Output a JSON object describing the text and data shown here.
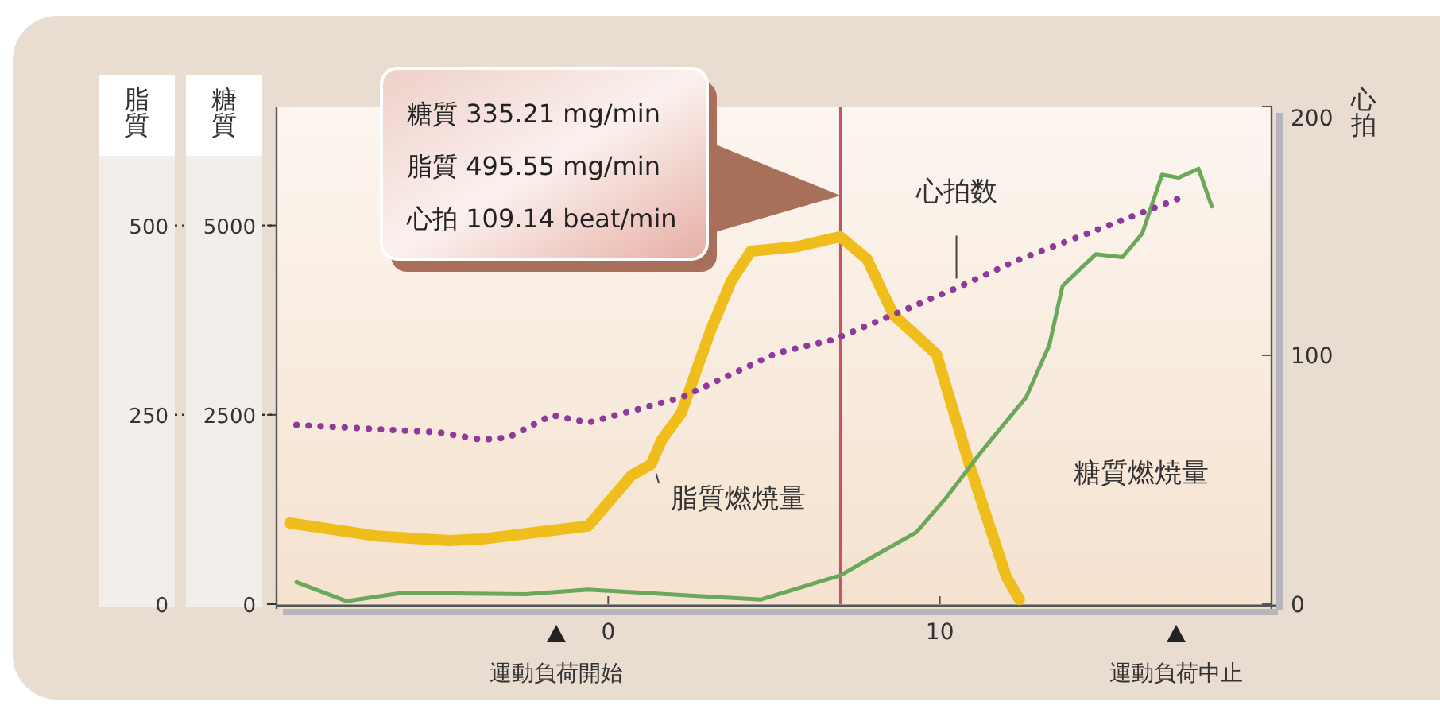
{
  "chart_data": {
    "type": "line",
    "xlim": [
      -10,
      20
    ],
    "xticks": [
      0,
      10
    ],
    "ylim": [
      0,
      657
    ],
    "yticks": [
      0,
      250,
      500
    ],
    "ylabel": "脂質",
    "y3lim": [
      0,
      6570
    ],
    "y3ticks": [
      0,
      2500,
      5000
    ],
    "y3label": "糖質",
    "y2lim": [
      0,
      200
    ],
    "y2ticks": [
      0,
      100,
      200
    ],
    "y2label": "心拍",
    "grid": false,
    "legend": false,
    "marker": "none",
    "series": [
      {
        "name": "脂質燃焼量",
        "color": "#f0be1c",
        "line_style": "solid",
        "x": [
          -9.6,
          -7.0,
          -4.8,
          -3.8,
          -0.6,
          0.7,
          1.3,
          1.6,
          2.2,
          3.1,
          3.7,
          4.3,
          5.7,
          7.0,
          7.8,
          8.6,
          9.9,
          10.9,
          12.0,
          12.4
        ],
        "values": [
          107,
          90,
          84,
          86,
          103,
          170,
          185,
          216,
          252,
          363,
          426,
          466,
          472,
          485,
          456,
          382,
          330,
          183,
          36,
          6
        ]
      },
      {
        "name": "糖質燃焼量",
        "color": "#6aa85a",
        "axis": "y3",
        "line_style": "solid",
        "x": [
          -9.4,
          -7.9,
          -6.2,
          -2.5,
          -0.6,
          2.6,
          4.6,
          7.0,
          8.0,
          9.3,
          10.2,
          11.3,
          12.6,
          13.3,
          13.7,
          14.7,
          15.5,
          16.1,
          16.7,
          17.2,
          17.8,
          18.2
        ],
        "values": [
          290,
          40,
          150,
          130,
          190,
          110,
          60,
          380,
          630,
          950,
          1410,
          2040,
          2730,
          3420,
          4200,
          4620,
          4580,
          4890,
          5670,
          5630,
          5750,
          5250
        ]
      },
      {
        "name": "心拍数",
        "color": "#8e3a9a",
        "axis": "y2",
        "line_style": "dotted",
        "x": [
          -9.4,
          -5.1,
          -3.8,
          -3.0,
          -1.7,
          -0.6,
          2.2,
          5.1,
          6.7,
          7.1,
          10.5,
          12.3,
          17.2
        ],
        "values": [
          72,
          69,
          66,
          67,
          76,
          73,
          83,
          101,
          106,
          108,
          127,
          138,
          163
        ]
      }
    ],
    "ref_lines": [
      {
        "axis": "x",
        "value": 7,
        "color": "#c8506a"
      }
    ],
    "annotations": [
      "糖質 335.21 mg/min",
      "脂質 495.55 mg/min",
      "心拍 109.14 beat/min",
      "運動負荷開始",
      "運動負荷中止"
    ]
  }
}
